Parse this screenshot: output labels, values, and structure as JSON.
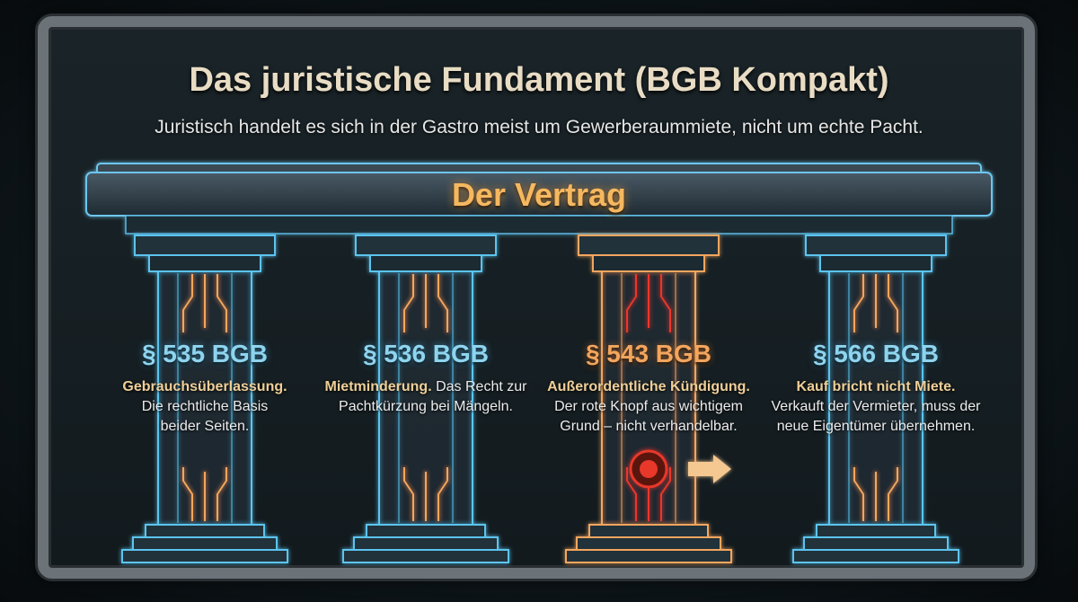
{
  "title": "Das juristische Fundament (BGB Kompakt)",
  "subtitle": "Juristisch handelt es sich in der Gastro meist um Gewerberaummiete, nicht um echte Pacht.",
  "beam_label": "Der Vertrag",
  "colors": {
    "blue": "#5cc4ee",
    "orange": "#f3a65e",
    "red": "#e8382a",
    "gold": "#efcf98"
  },
  "pillars": [
    {
      "code": "§ 535 BGB",
      "term": "Gebrauchsüberlassung.",
      "text": "Die rechtliche Basis beider Seiten.",
      "color": "blue"
    },
    {
      "code": "§ 536 BGB",
      "term": "Mietminderung.",
      "text": "Das Recht zur Pachtkürzung bei Mängeln.",
      "color": "blue"
    },
    {
      "code": "§ 543 BGB",
      "term": "Außerordentliche Kündigung.",
      "text": "Der rote Knopf aus wichtigem Grund – nicht verhandelbar.",
      "color": "orange",
      "icon": "red-button-icon"
    },
    {
      "code": "§ 566 BGB",
      "term": "Kauf bricht nicht Miete.",
      "text": "Verkauft der Vermieter, muss der neue Eigentümer übernehmen.",
      "color": "blue"
    }
  ]
}
